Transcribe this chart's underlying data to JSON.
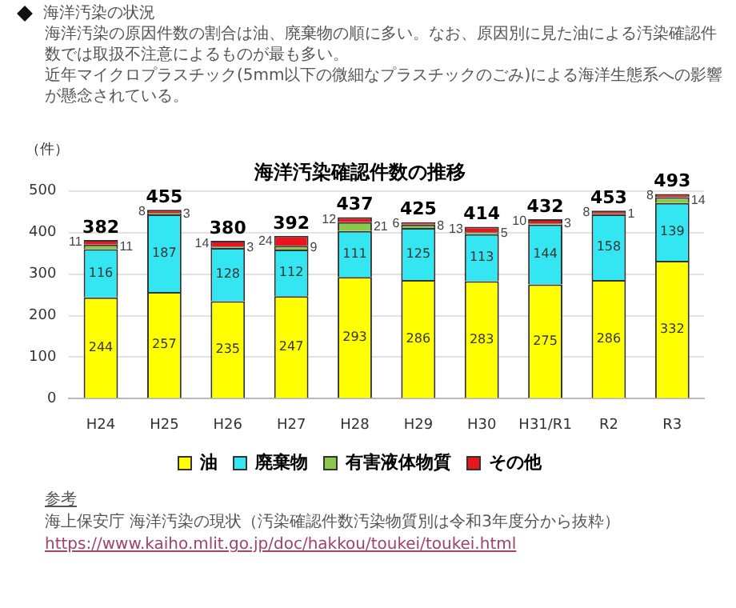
{
  "chart_data": {
    "type": "bar",
    "title": "海洋汚染確認件数の推移",
    "ylabel": "（件）",
    "annotations": [
      "海洋汚染の状況",
      "海洋汚染の原因件数の割合は油、廃棄物の順に多い。なお、原因別に見た油による汚染確認件数では取扱不注意によるものが最も多い。",
      "近年マイクロプラスチック(5mm以下の微細なプラスチックのごみ)による海洋生態系への影響が懸念されている。",
      "参考",
      "海上保安庁 海洋汚染の現状（汚染確認件数汚染物質別は令和3年度分から抜粋）",
      "https://www.kaiho.mlit.go.jp/doc/hakkou/toukei/toukei.html"
    ],
    "categories": [
      "H24",
      "H25",
      "H26",
      "H27",
      "H28",
      "H29",
      "H30",
      "H31/R1",
      "R2",
      "R3"
    ],
    "stacked": true,
    "series": [
      {
        "name": "油",
        "color": "#ffff00",
        "values": [
          244,
          257,
          235,
          247,
          293,
          286,
          283,
          275,
          286,
          332
        ]
      },
      {
        "name": "廃棄物",
        "color": "#33e6f2",
        "values": [
          116,
          187,
          128,
          112,
          111,
          125,
          113,
          144,
          158,
          139
        ]
      },
      {
        "name": "有害液体物質",
        "color": "#8cc84b",
        "values": [
          11,
          3,
          3,
          9,
          21,
          8,
          5,
          3,
          1,
          14
        ]
      },
      {
        "name": "その他",
        "color": "#e8141e",
        "values": [
          11,
          8,
          14,
          24,
          12,
          6,
          13,
          10,
          8,
          8
        ]
      }
    ],
    "totals": [
      "382",
      "455",
      "380",
      "392",
      "437",
      "425",
      "414",
      "432",
      "453",
      "493"
    ],
    "data_labels": true,
    "ylim": [
      0,
      500
    ],
    "yticks": [
      0,
      100,
      200,
      300,
      400,
      500
    ],
    "grid": "y",
    "legend": "bottom"
  }
}
